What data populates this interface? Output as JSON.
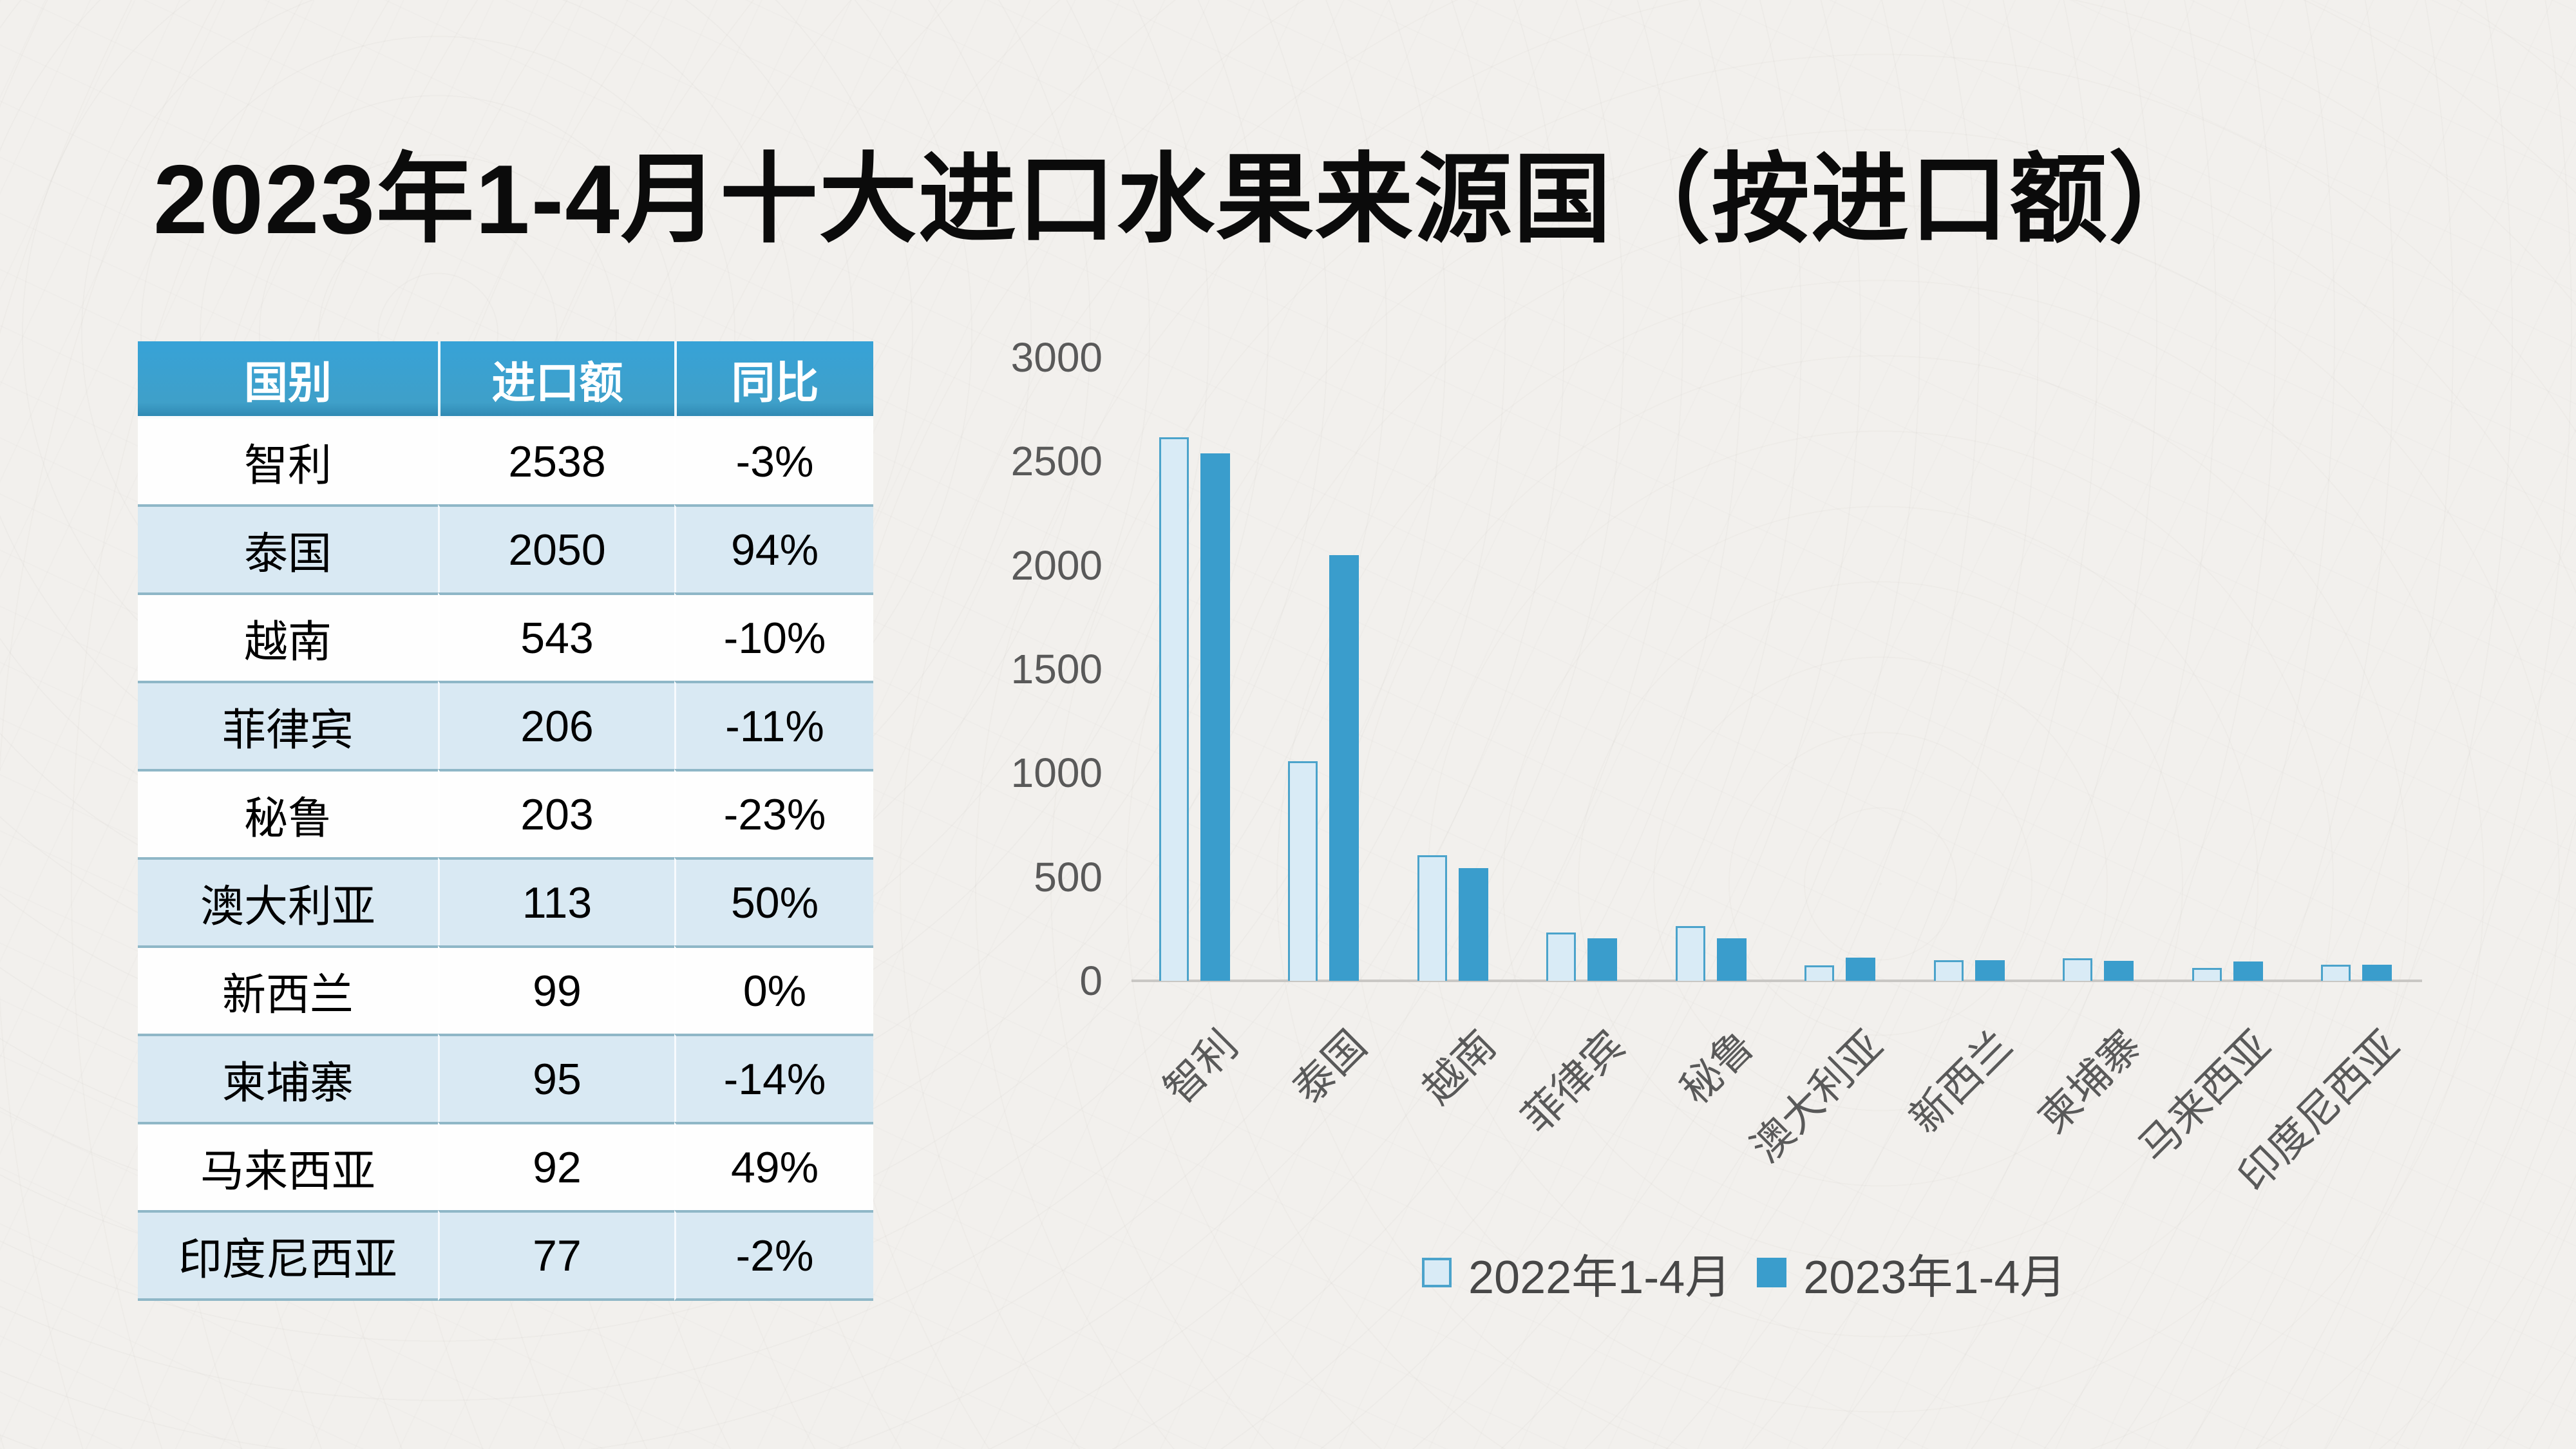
{
  "title": "2023年1-4月十大进口水果来源国（按进口额）",
  "table": {
    "headers": [
      "国别",
      "进口额",
      "同比"
    ],
    "rows": [
      {
        "country": "智利",
        "value": "2538",
        "yoy": "-3%"
      },
      {
        "country": "泰国",
        "value": "2050",
        "yoy": "94%"
      },
      {
        "country": "越南",
        "value": "543",
        "yoy": "-10%"
      },
      {
        "country": "菲律宾",
        "value": "206",
        "yoy": "-11%"
      },
      {
        "country": "秘鲁",
        "value": "203",
        "yoy": "-23%"
      },
      {
        "country": "澳大利亚",
        "value": "113",
        "yoy": "50%"
      },
      {
        "country": "新西兰",
        "value": "99",
        "yoy": "0%"
      },
      {
        "country": "柬埔寨",
        "value": "95",
        "yoy": "-14%"
      },
      {
        "country": "马来西亚",
        "value": "92",
        "yoy": "49%"
      },
      {
        "country": "印度尼西亚",
        "value": "77",
        "yoy": "-2%"
      }
    ]
  },
  "chart_data": {
    "type": "bar",
    "categories": [
      "智利",
      "泰国",
      "越南",
      "菲律宾",
      "秘鲁",
      "澳大利亚",
      "新西兰",
      "柬埔寨",
      "马来西亚",
      "印度尼西亚"
    ],
    "series": [
      {
        "name": "2022年1-4月",
        "values": [
          2617,
          1057,
          603,
          231,
          264,
          75,
          99,
          110,
          62,
          79
        ],
        "fill": "#D9EBF6",
        "border": "#4BA3CB"
      },
      {
        "name": "2023年1-4月",
        "values": [
          2538,
          2050,
          543,
          206,
          203,
          113,
          99,
          95,
          92,
          77
        ],
        "fill": "#3A9DCC",
        "border": "#3A9DCC"
      }
    ],
    "ylim": [
      0,
      3000
    ],
    "yticks": [
      0,
      500,
      1000,
      1500,
      2000,
      2500,
      3000
    ],
    "grid": false,
    "legend_position": "bottom",
    "axis_color": "#C9C7C4",
    "tick_label_color": "#595959"
  },
  "colors": {
    "background": "#F2F0ED",
    "title_text": "#0B0B0B",
    "table_header_bg": "#3AA0D2",
    "table_header_text": "#FFFFFF",
    "table_row_bg": "#FEFEFE",
    "table_row_alt_bg": "#D9E9F3",
    "table_row_border": "#8FB7C7",
    "series_2022": "#D9EBF6",
    "series_2022_border": "#4BA3CB",
    "series_2023": "#3A9DCC"
  }
}
